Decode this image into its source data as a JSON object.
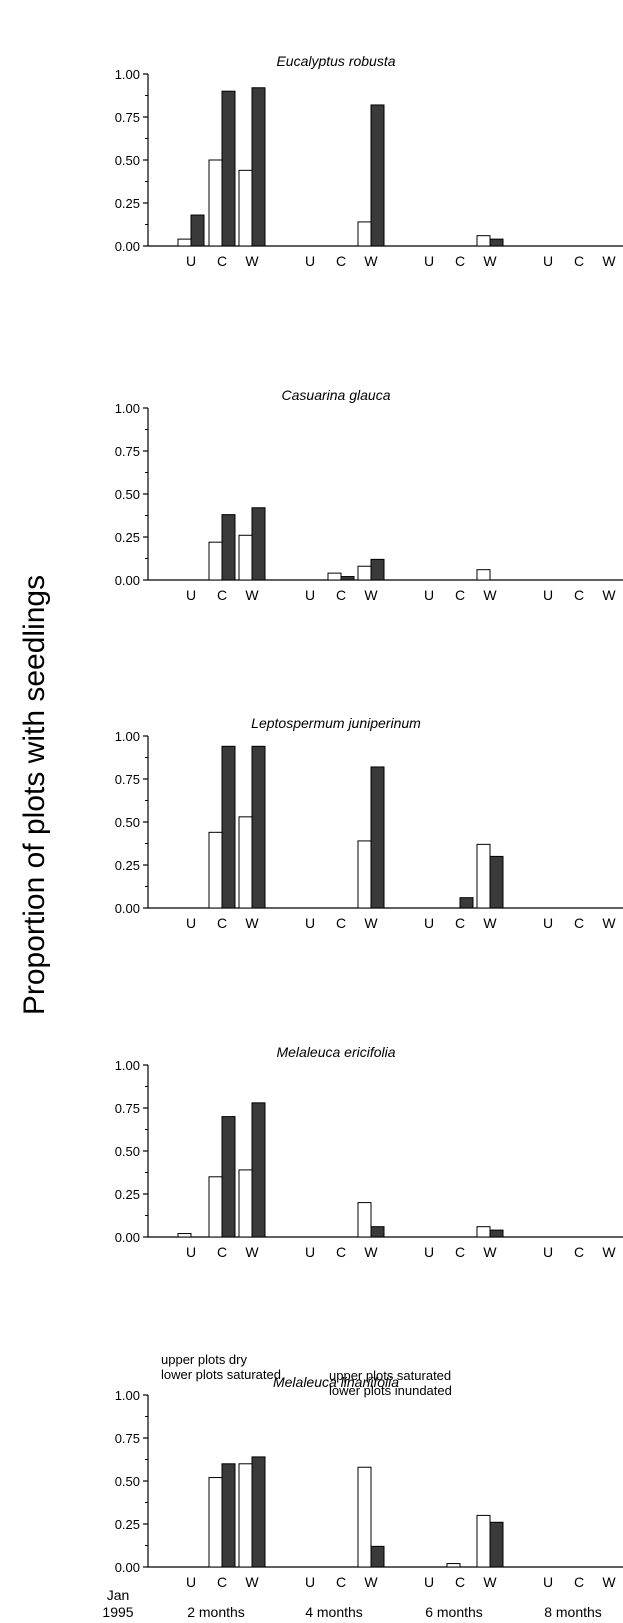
{
  "ylabel": "Proportion of plots with seedlings",
  "time_labels": [
    "2 months",
    "4 months",
    "6 months",
    "8 months"
  ],
  "start_label": [
    "Jan",
    "1995"
  ],
  "treatments": [
    "U",
    "C",
    "W"
  ],
  "legend_fill": {
    "open": "#ffffff",
    "dark": "#3a3a3a"
  },
  "yticks": [
    "0.00",
    "0.25",
    "0.50",
    "0.75",
    "1.00"
  ],
  "annotations": [
    [
      "upper plots dry",
      "lower plots saturated"
    ],
    [
      "upper plots saturated",
      "lower plots inundated"
    ]
  ],
  "chart_data": [
    {
      "type": "bar",
      "title": "Eucalyptus robusta",
      "ylim": [
        0,
        1
      ],
      "groups": [
        {
          "time": "2 months",
          "U": [
            0.04,
            0.18
          ],
          "C": [
            0.5,
            0.9
          ],
          "W": [
            0.44,
            0.92
          ]
        },
        {
          "time": "4 months",
          "U": [
            0,
            0
          ],
          "C": [
            0,
            0
          ],
          "W": [
            0.14,
            0.82
          ]
        },
        {
          "time": "6 months",
          "U": [
            0,
            0
          ],
          "C": [
            0,
            0
          ],
          "W": [
            0.06,
            0.04
          ]
        },
        {
          "time": "8 months",
          "U": [
            0,
            0
          ],
          "C": [
            0,
            0
          ],
          "W": [
            0,
            0
          ]
        }
      ]
    },
    {
      "type": "bar",
      "title": "Casuarina glauca",
      "ylim": [
        0,
        1
      ],
      "groups": [
        {
          "time": "2 months",
          "U": [
            0,
            0
          ],
          "C": [
            0.22,
            0.38
          ],
          "W": [
            0.26,
            0.42
          ]
        },
        {
          "time": "4 months",
          "U": [
            0,
            0
          ],
          "C": [
            0.04,
            0.02
          ],
          "W": [
            0.08,
            0.12
          ]
        },
        {
          "time": "6 months",
          "U": [
            0,
            0
          ],
          "C": [
            0,
            0
          ],
          "W": [
            0.06,
            0
          ]
        },
        {
          "time": "8 months",
          "U": [
            0,
            0
          ],
          "C": [
            0,
            0
          ],
          "W": [
            0,
            0
          ]
        }
      ]
    },
    {
      "type": "bar",
      "title": "Leptospermum juniperinum",
      "ylim": [
        0,
        1
      ],
      "groups": [
        {
          "time": "2 months",
          "U": [
            0,
            0
          ],
          "C": [
            0.44,
            0.94
          ],
          "W": [
            0.53,
            0.94
          ]
        },
        {
          "time": "4 months",
          "U": [
            0,
            0
          ],
          "C": [
            0,
            0
          ],
          "W": [
            0.39,
            0.82
          ]
        },
        {
          "time": "6 months",
          "U": [
            0,
            0
          ],
          "C": [
            0,
            0.06
          ],
          "W": [
            0.37,
            0.3
          ]
        },
        {
          "time": "8 months",
          "U": [
            0,
            0
          ],
          "C": [
            0,
            0
          ],
          "W": [
            0,
            0
          ]
        }
      ]
    },
    {
      "type": "bar",
      "title": "Melaleuca ericifolia",
      "ylim": [
        0,
        1
      ],
      "groups": [
        {
          "time": "2 months",
          "U": [
            0.02,
            0
          ],
          "C": [
            0.35,
            0.7
          ],
          "W": [
            0.39,
            0.78
          ]
        },
        {
          "time": "4 months",
          "U": [
            0,
            0
          ],
          "C": [
            0,
            0
          ],
          "W": [
            0.2,
            0.06
          ]
        },
        {
          "time": "6 months",
          "U": [
            0,
            0
          ],
          "C": [
            0,
            0
          ],
          "W": [
            0.06,
            0.04
          ]
        },
        {
          "time": "8 months",
          "U": [
            0,
            0
          ],
          "C": [
            0,
            0
          ],
          "W": [
            0,
            0
          ]
        }
      ]
    },
    {
      "type": "bar",
      "title": "Melaleuca linariifolia",
      "ylim": [
        0,
        1
      ],
      "groups": [
        {
          "time": "2 months",
          "U": [
            0,
            0
          ],
          "C": [
            0.52,
            0.6
          ],
          "W": [
            0.6,
            0.64
          ]
        },
        {
          "time": "4 months",
          "U": [
            0,
            0
          ],
          "C": [
            0,
            0
          ],
          "W": [
            0.58,
            0.12
          ]
        },
        {
          "time": "6 months",
          "U": [
            0,
            0
          ],
          "C": [
            0.02,
            0
          ],
          "W": [
            0.3,
            0.26
          ]
        },
        {
          "time": "8 months",
          "U": [
            0,
            0
          ],
          "C": [
            0,
            0
          ],
          "W": [
            0,
            0
          ]
        }
      ]
    }
  ]
}
